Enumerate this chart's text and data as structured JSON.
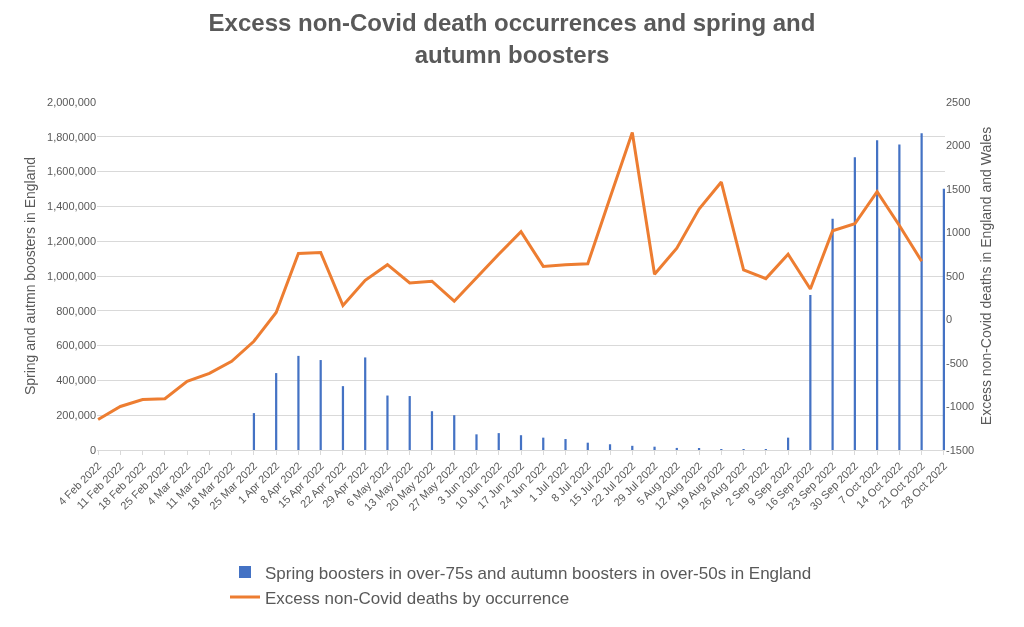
{
  "chart_data": {
    "type": "bar",
    "title": "Excess non-Covid death occurrences and spring and autumn boosters",
    "ylabel": "Spring and autmn boosters in England",
    "y2label": "Excess non-Covid deaths in England and Wales",
    "categories": [
      "4 Feb 2022",
      "11 Feb 2022",
      "18 Feb 2022",
      "25 Feb 2022",
      "4 Mar 2022",
      "11 Mar 2022",
      "18 Mar 2022",
      "25 Mar 2022",
      "1 Apr 2022",
      "8 Apr 2022",
      "15 Apr 2022",
      "22 Apr 2022",
      "29 Apr 2022",
      "6 May 2022",
      "13 May 2022",
      "20 May 2022",
      "27 May 2022",
      "3 Jun 2022",
      "10 Jun 2022",
      "17 Jun 2022",
      "24 Jun 2022",
      "1 Jul 2022",
      "8 Jul 2022",
      "15 Jul 2022",
      "22 Jul 2022",
      "29 Jul 2022",
      "5 Aug 2022",
      "12 Aug 2022",
      "19 Aug 2022",
      "26 Aug 2022",
      "2 Sep 2022",
      "9 Sep 2022",
      "16 Sep 2022",
      "23 Sep 2022",
      "30 Sep 2022",
      "7 Oct 2022",
      "14 Oct 2022",
      "21 Oct 2022",
      "28 Oct 2022"
    ],
    "series": [
      {
        "name": "Spring boosters in over-75s and autumn boosters in over-50s in England",
        "color": "#4472c4",
        "values": [
          0,
          0,
          0,
          0,
          0,
          0,
          0,
          212000,
          442000,
          541000,
          517000,
          367000,
          532000,
          313000,
          310000,
          223000,
          200000,
          90000,
          97000,
          85000,
          71000,
          63000,
          42000,
          33000,
          24000,
          19000,
          12000,
          9000,
          5000,
          4000,
          4000,
          71000,
          891000,
          1329000,
          1683000,
          1780000,
          1756000,
          1820000,
          1501000
        ]
      },
      {
        "type": "line",
        "axis": "y2",
        "name": "Excess non-Covid deaths by occurrence",
        "color": "#ed7d31",
        "values": [
          -1150,
          -1000,
          -920,
          -910,
          -710,
          -620,
          -480,
          -250,
          80,
          760,
          770,
          160,
          450,
          630,
          420,
          440,
          210,
          480,
          750,
          1010,
          610,
          630,
          640,
          1400,
          2150,
          520,
          820,
          1270,
          1580,
          570,
          470,
          750,
          350,
          1020,
          1100,
          1470,
          1080,
          670,
          null
        ]
      }
    ],
    "ylim": [
      0,
      2000000
    ],
    "yticks": [
      {
        "value": 0,
        "label": "0"
      },
      {
        "value": 200000,
        "label": "200,000"
      },
      {
        "value": 400000,
        "label": "400,000"
      },
      {
        "value": 600000,
        "label": "600,000"
      },
      {
        "value": 800000,
        "label": "800,000"
      },
      {
        "value": 1000000,
        "label": "1,000,000"
      },
      {
        "value": 1200000,
        "label": "1,200,000"
      },
      {
        "value": 1400000,
        "label": "1,400,000"
      },
      {
        "value": 1600000,
        "label": "1,600,000"
      },
      {
        "value": 1800000,
        "label": "1,800,000"
      },
      {
        "value": 2000000,
        "label": "2,000,000"
      }
    ],
    "y2lim": [
      -1500,
      2500
    ],
    "y2ticks": [
      -1500,
      -1000,
      -500,
      0,
      500,
      1000,
      1500,
      2000,
      2500
    ],
    "grid": "y",
    "legend": "bottom",
    "marker": "none",
    "line_style": "solid"
  }
}
